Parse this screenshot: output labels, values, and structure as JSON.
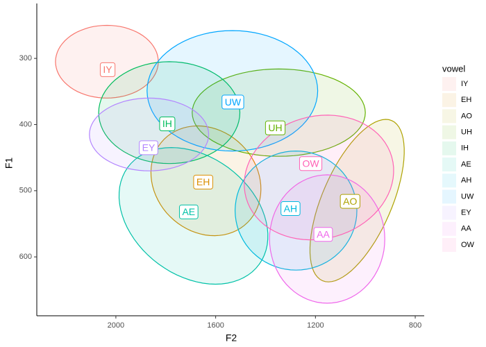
{
  "chart_data": {
    "type": "ellipse",
    "x_label": "F2",
    "y_label": "F1",
    "legend_title": "vowel",
    "xlim": [
      2317,
      764
    ],
    "ylim": [
      689,
      217
    ],
    "xticks": [
      2000,
      1600,
      1200,
      800
    ],
    "yticks": [
      300,
      400,
      500,
      600
    ],
    "series": [
      {
        "name": "IY",
        "color": "#F8766D",
        "x": 2033,
        "y": 317,
        "ellipse": {
          "center": [
            2036,
            305
          ],
          "u": [
            206,
            0
          ],
          "v": [
            0,
            55
          ]
        }
      },
      {
        "name": "EH",
        "color": "#DB8E00",
        "x": 1650,
        "y": 487,
        "ellipse": {
          "center": [
            1639,
            485
          ],
          "u": [
            -167,
            63
          ],
          "v": [
            144,
            54
          ]
        }
      },
      {
        "name": "AO",
        "color": "#AEA200",
        "x": 1061,
        "y": 516,
        "ellipse": {
          "center": [
            1033,
            515
          ],
          "u": [
            -139,
            -121
          ],
          "v": [
            -128,
            21
          ]
        }
      },
      {
        "name": "UH",
        "color": "#64B200",
        "x": 1361,
        "y": 405,
        "ellipse": {
          "center": [
            1347,
            382
          ],
          "u": [
            347,
            0
          ],
          "v": [
            0,
            66
          ]
        }
      },
      {
        "name": "IH",
        "color": "#00BD5C",
        "x": 1794,
        "y": 399,
        "ellipse": {
          "center": [
            1786,
            382
          ],
          "u": [
            283,
            0
          ],
          "v": [
            0,
            77
          ]
        }
      },
      {
        "name": "AE",
        "color": "#00C1A7",
        "x": 1708,
        "y": 532,
        "ellipse": {
          "center": [
            1689,
            538
          ],
          "u": [
            -264,
            73
          ],
          "v": [
            139,
            73
          ]
        }
      },
      {
        "name": "AH",
        "color": "#00BADE",
        "x": 1300,
        "y": 527,
        "ellipse": {
          "center": [
            1278,
            530
          ],
          "u": [
            244,
            0
          ],
          "v": [
            0,
            90
          ]
        }
      },
      {
        "name": "UW",
        "color": "#00A6FF",
        "x": 1531,
        "y": 366,
        "ellipse": {
          "center": [
            1533,
            349
          ],
          "u": [
            342,
            0
          ],
          "v": [
            0,
            91
          ]
        }
      },
      {
        "name": "EY",
        "color": "#B385FF",
        "x": 1869,
        "y": 435,
        "ellipse": {
          "center": [
            1867,
            415
          ],
          "u": [
            239,
            0
          ],
          "v": [
            0,
            55
          ]
        }
      },
      {
        "name": "AA",
        "color": "#EF67EB",
        "x": 1169,
        "y": 566,
        "ellipse": {
          "center": [
            1153,
            573
          ],
          "u": [
            231,
            0
          ],
          "v": [
            0,
            97
          ]
        }
      },
      {
        "name": "OW",
        "color": "#FF63B6",
        "x": 1219,
        "y": 459,
        "ellipse": {
          "center": [
            1186,
            480
          ],
          "u": [
            -292,
            -31
          ],
          "v": [
            -67,
            89
          ]
        }
      }
    ]
  }
}
